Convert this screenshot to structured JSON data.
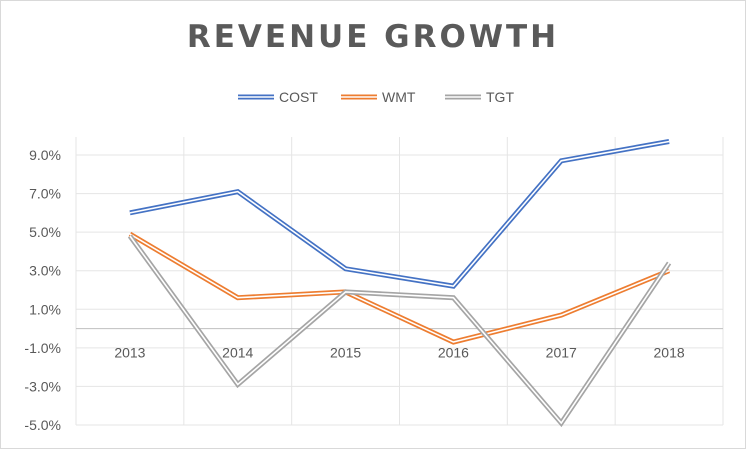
{
  "chart_data": {
    "type": "line",
    "title": "REVENUE GROWTH",
    "xlabel": "",
    "ylabel": "",
    "categories": [
      "2013",
      "2014",
      "2015",
      "2016",
      "2017",
      "2018"
    ],
    "series": [
      {
        "name": "COST",
        "color": "#4472c4",
        "values": [
          6.0,
          7.1,
          3.1,
          2.2,
          8.7,
          9.7
        ]
      },
      {
        "name": "WMT",
        "color": "#ed7d31",
        "values": [
          4.9,
          1.6,
          1.9,
          -0.7,
          0.7,
          3.0
        ]
      },
      {
        "name": "TGT",
        "color": "#a5a5a5",
        "values": [
          4.8,
          -2.9,
          1.9,
          1.6,
          -4.9,
          3.4
        ]
      }
    ],
    "yticks": [
      9.0,
      7.0,
      5.0,
      3.0,
      1.0,
      -1.0,
      -3.0,
      -5.0
    ],
    "ytick_labels": [
      "9.0%",
      "7.0%",
      "5.0%",
      "3.0%",
      "1.0%",
      "-1.0%",
      "-3.0%",
      "-5.0%"
    ],
    "ylim": [
      -5.0,
      9.0
    ],
    "grid": true,
    "legend_position": "top"
  }
}
